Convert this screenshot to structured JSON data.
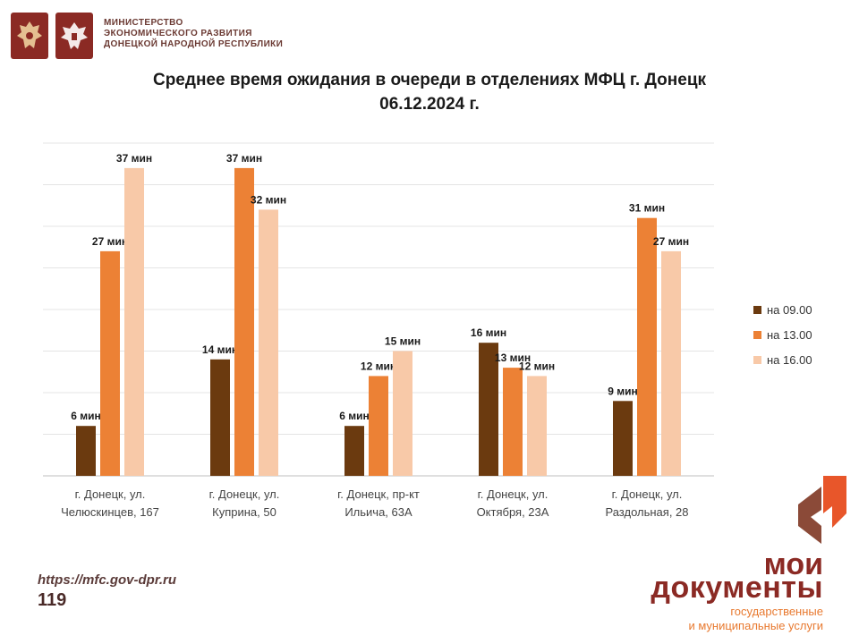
{
  "header": {
    "ministry_lines": [
      "МИНИСТЕРСТВО",
      "ЭКОНОМИЧЕСКОГО РАЗВИТИЯ",
      "ДОНЕЦКОЙ НАРОДНОЙ РЕСПУБЛИКИ"
    ]
  },
  "title_line1": "Среднее время ожидания в очереди в отделениях МФЦ г. Донецк",
  "title_line2": "06.12.2024 г.",
  "chart_data": {
    "type": "bar",
    "title": "Среднее время ожидания в очереди в отделениях МФЦ г. Донецк 06.12.2024 г.",
    "categories": [
      [
        "г. Донецк, ул.",
        "Челюскинцев, 167"
      ],
      [
        "г. Донецк, ул.",
        "Куприна, 50"
      ],
      [
        "г. Донецк, пр-кт",
        "Ильича, 63А"
      ],
      [
        "г. Донецк, ул.",
        "Октября, 23А"
      ],
      [
        "г. Донецк, ул.",
        "Раздольная, 28"
      ]
    ],
    "series": [
      {
        "name": "на 09.00",
        "color": "#6b3a0f",
        "values": [
          6,
          14,
          6,
          16,
          9
        ]
      },
      {
        "name": "на 13.00",
        "color": "#ec8135",
        "values": [
          27,
          37,
          12,
          13,
          31
        ]
      },
      {
        "name": "на 16.00",
        "color": "#f8c9a8",
        "values": [
          37,
          32,
          15,
          12,
          27
        ]
      }
    ],
    "value_suffix": " мин",
    "ylim": [
      0,
      40
    ],
    "grid": true,
    "legend_position": "right"
  },
  "footer": {
    "url": "https://mfc.gov-dpr.ru",
    "page_number": "119"
  },
  "brand": {
    "line1": "мои",
    "line2": "документы",
    "tagline_line1": "государственные",
    "tagline_line2": "и муниципальные услуги"
  }
}
